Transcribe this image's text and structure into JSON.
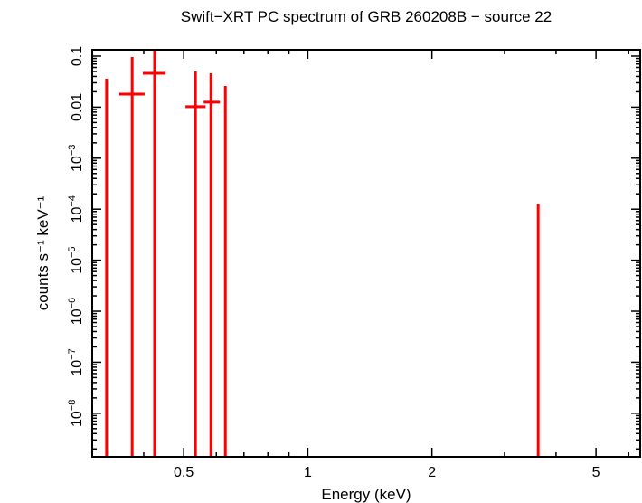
{
  "chart_data": {
    "type": "scatter",
    "title": "Swift−XRT PC spectrum of GRB 260208B − source 22",
    "xlabel": "Energy (keV)",
    "ylabel": "counts s⁻¹ keV⁻¹",
    "x_scale": "log",
    "y_scale": "log",
    "xlim": [
      0.3,
      6.4
    ],
    "ylim": [
      1.4e-09,
      0.133
    ],
    "grid": false,
    "color": "#ff0000",
    "x_ticks": [
      {
        "value": 0.5,
        "label": "0.5"
      },
      {
        "value": 1,
        "label": "1"
      },
      {
        "value": 2,
        "label": "2"
      },
      {
        "value": 5,
        "label": "5"
      }
    ],
    "y_ticks": [
      {
        "value": 0.1,
        "label": "0.1"
      },
      {
        "value": 0.01,
        "label": "0.01"
      },
      {
        "value": 0.001,
        "label": "10",
        "exp": "−3"
      },
      {
        "value": 0.0001,
        "label": "10",
        "exp": "−4"
      },
      {
        "value": 1e-05,
        "label": "10",
        "exp": "−5"
      },
      {
        "value": 1e-06,
        "label": "10",
        "exp": "−6"
      },
      {
        "value": 1e-07,
        "label": "10",
        "exp": "−7"
      },
      {
        "value": 1e-08,
        "label": "10",
        "exp": "−8"
      }
    ],
    "points": [
      {
        "x": 0.325,
        "xlo": null,
        "xhi": null,
        "y": null,
        "ylo": null,
        "yhi": 0.036
      },
      {
        "x": 0.375,
        "xlo": 0.349,
        "xhi": 0.402,
        "y": 0.018,
        "ylo": null,
        "yhi": 0.096
      },
      {
        "x": 0.425,
        "xlo": 0.398,
        "xhi": 0.452,
        "y": 0.046,
        "ylo": null,
        "yhi": 0.2
      },
      {
        "x": 0.534,
        "xlo": 0.505,
        "xhi": 0.565,
        "y": 0.0102,
        "ylo": null,
        "yhi": 0.05
      },
      {
        "x": 0.582,
        "xlo": 0.559,
        "xhi": 0.612,
        "y": 0.0125,
        "ylo": null,
        "yhi": 0.046
      },
      {
        "x": 0.631,
        "xlo": null,
        "xhi": null,
        "y": null,
        "ylo": null,
        "yhi": 0.026
      },
      {
        "x": 3.62,
        "xlo": null,
        "xhi": null,
        "y": null,
        "ylo": null,
        "yhi": 0.000126
      }
    ]
  }
}
